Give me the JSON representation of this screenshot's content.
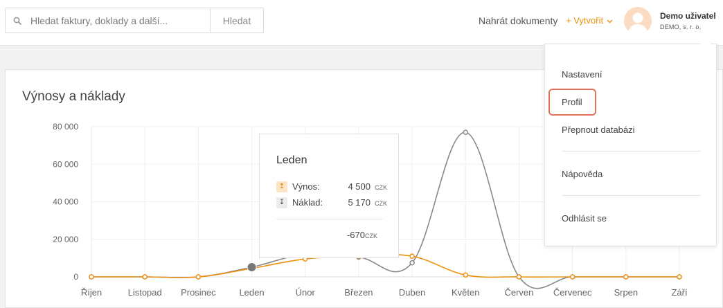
{
  "header": {
    "search_placeholder": "Hledat faktury, doklady a další...",
    "search_button": "Hledat",
    "upload_label": "Nahrát dokumenty",
    "create_label": "+ Vytvořit",
    "user_name": "Demo uživatel",
    "user_company": "DEMO, s. r. o."
  },
  "card": {
    "title": "Výnosy a náklady"
  },
  "colors": {
    "revenue": "#f0900f",
    "cost": "#888888",
    "highlight": "#e2735a"
  },
  "chart_data": {
    "type": "line",
    "categories": [
      "Říjen",
      "Listopad",
      "Prosinec",
      "Leden",
      "Únor",
      "Březen",
      "Duben",
      "Květen",
      "Červen",
      "Červenec",
      "Srpen",
      "Září"
    ],
    "yticks": [
      "0",
      "20 000",
      "40 000",
      "60 000",
      "80 000"
    ],
    "ylim": [
      0,
      80000
    ],
    "grid": true,
    "series": [
      {
        "name": "Výnos",
        "values": [
          0,
          0,
          0,
          4500,
          9500,
          11000,
          11000,
          1000,
          0,
          0,
          0,
          0
        ]
      },
      {
        "name": "Náklad",
        "values": [
          0,
          0,
          0,
          5170,
          12000,
          10500,
          7500,
          77000,
          0,
          0,
          0,
          0
        ]
      }
    ]
  },
  "tooltip": {
    "title": "Leden",
    "revenue_label": "Výnos:",
    "revenue_value": "4 500",
    "cost_label": "Náklad:",
    "cost_value": "5 170",
    "currency": "CZK",
    "total": "-670"
  },
  "menu": {
    "items": [
      "Nastavení",
      "Profil",
      "Přepnout databázi",
      "Nápověda",
      "Odhlásit se"
    ]
  }
}
